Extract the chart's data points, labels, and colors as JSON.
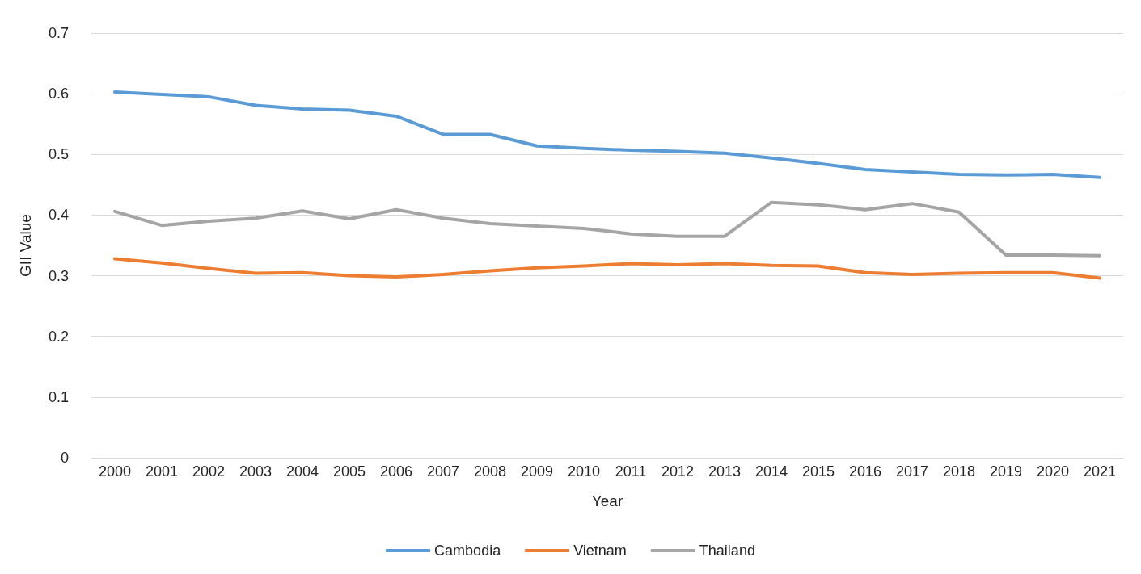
{
  "chart_data": {
    "type": "line",
    "xlabel": "Year",
    "ylabel": "GII Value",
    "categories": [
      "2000",
      "2001",
      "2002",
      "2003",
      "2004",
      "2005",
      "2006",
      "2007",
      "2008",
      "2009",
      "2010",
      "2011",
      "2012",
      "2013",
      "2014",
      "2015",
      "2016",
      "2017",
      "2018",
      "2019",
      "2020",
      "2021"
    ],
    "series": [
      {
        "name": "Cambodia",
        "color": "#5b9bd5",
        "values": [
          0.603,
          0.599,
          0.595,
          0.581,
          0.575,
          0.573,
          0.563,
          0.533,
          0.533,
          0.514,
          0.51,
          0.507,
          0.505,
          0.502,
          0.494,
          0.485,
          0.475,
          0.471,
          0.467,
          0.466,
          0.467,
          0.462
        ]
      },
      {
        "name": "Vietnam",
        "color": "#ed7d31",
        "values": [
          0.328,
          0.321,
          0.312,
          0.304,
          0.305,
          0.3,
          0.298,
          0.302,
          0.308,
          0.313,
          0.316,
          0.32,
          0.318,
          0.32,
          0.317,
          0.316,
          0.305,
          0.302,
          0.304,
          0.305,
          0.305,
          0.296
        ]
      },
      {
        "name": "Thailand",
        "color": "#a5a5a5",
        "values": [
          0.406,
          0.383,
          0.39,
          0.395,
          0.407,
          0.394,
          0.409,
          0.395,
          0.386,
          0.382,
          0.378,
          0.369,
          0.365,
          0.365,
          0.421,
          0.417,
          0.409,
          0.419,
          0.405,
          0.334,
          0.334,
          0.333
        ]
      }
    ],
    "ylim": [
      0,
      0.7
    ],
    "yticks": [
      0,
      0.1,
      0.2,
      0.3,
      0.4,
      0.5,
      0.6,
      0.7
    ],
    "grid": "y",
    "legend": "bottom",
    "marker": "none",
    "line_style": "solid"
  }
}
